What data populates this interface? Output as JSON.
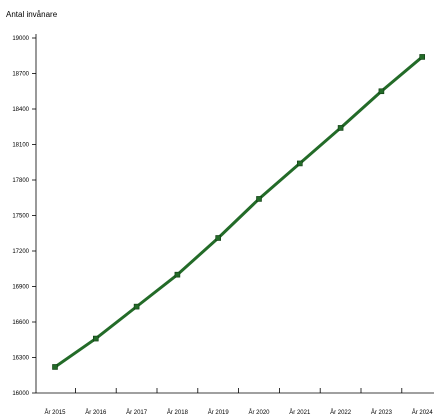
{
  "chart_data": {
    "type": "line",
    "ylabel": "Antal invånare",
    "xlabel": "",
    "title": "",
    "categories": [
      "År 2015",
      "År 2016",
      "År 2017",
      "År 2018",
      "År 2019",
      "År 2020",
      "År 2021",
      "År 2022",
      "År 2023",
      "År 2024"
    ],
    "series": [
      {
        "values": [
          16220,
          16460,
          16730,
          17000,
          17310,
          17640,
          17940,
          18240,
          18550,
          18840
        ],
        "color": "#236b28"
      }
    ],
    "ylim": [
      16000,
      19000
    ],
    "yticks": [
      16000,
      16300,
      16600,
      16900,
      17200,
      17500,
      17800,
      18100,
      18400,
      18700,
      19000
    ],
    "grid": false,
    "legend": "none",
    "marker": "square"
  }
}
